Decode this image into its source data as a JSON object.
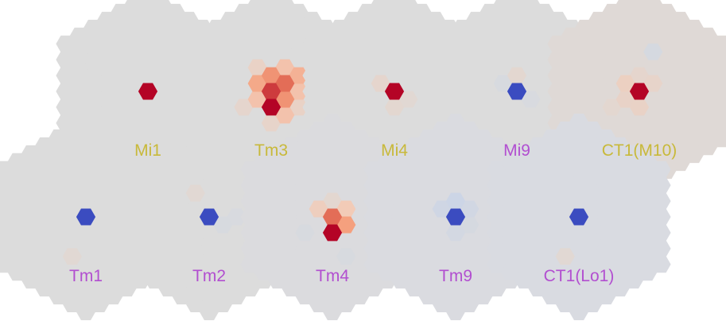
{
  "colors": {
    "on_label": "#c8b93a",
    "off_label": "#b24fd0",
    "background_hex": "#dcdcdc",
    "center_on": "#b40426",
    "center_off": "#3b4cc0"
  },
  "rows": [
    {
      "panels": [
        {
          "name": "Mi1",
          "polarity": "on",
          "tint": "#dcdcdc",
          "hexes": [
            {
              "q": 0,
              "r": 0,
              "v": 1.0
            }
          ]
        },
        {
          "name": "Tm3",
          "polarity": "on",
          "tint": "#dcdcdc",
          "hexes": [
            {
              "q": 0,
              "r": 0,
              "v": 0.85
            },
            {
              "q": 1,
              "r": 0,
              "v": 0.55
            },
            {
              "q": 0,
              "r": -1,
              "v": 0.55
            },
            {
              "q": 1,
              "r": -1,
              "v": 0.7
            },
            {
              "q": -1,
              "r": 0,
              "v": 0.45
            },
            {
              "q": -1,
              "r": 1,
              "v": 0.3
            },
            {
              "q": 0,
              "r": 1,
              "v": 1.0
            },
            {
              "q": 1,
              "r": 1,
              "v": 0.3
            },
            {
              "q": 2,
              "r": -1,
              "v": 0.3
            },
            {
              "q": 2,
              "r": -2,
              "v": 0.4
            },
            {
              "q": 1,
              "r": -2,
              "v": 0.3
            },
            {
              "q": -1,
              "r": -1,
              "v": 0.15
            },
            {
              "q": 2,
              "r": 0,
              "v": 0.15
            },
            {
              "q": 0,
              "r": 2,
              "v": 0.12
            },
            {
              "q": -2,
              "r": 2,
              "v": 0.1
            }
          ]
        },
        {
          "name": "Mi4",
          "polarity": "on",
          "tint": "#dcdcdc",
          "hexes": [
            {
              "q": 0,
              "r": 0,
              "v": 1.0
            },
            {
              "q": -1,
              "r": 0,
              "v": 0.1
            },
            {
              "q": 0,
              "r": 1,
              "v": 0.08
            },
            {
              "q": 1,
              "r": 0,
              "v": 0.06
            }
          ]
        },
        {
          "name": "Mi9",
          "polarity": "off",
          "tint": "#dcdcdc",
          "hexes": [
            {
              "q": 0,
              "r": 0,
              "v": -1.0
            },
            {
              "q": 0,
              "r": -1,
              "v": 0.08
            },
            {
              "q": -1,
              "r": 0,
              "v": -0.06
            },
            {
              "q": 1,
              "r": 0,
              "v": -0.05
            }
          ]
        },
        {
          "name": "CT1(M10)",
          "polarity": "on",
          "tint": "#dfd9d6",
          "hexes": [
            {
              "q": 0,
              "r": 0,
              "v": 1.0
            },
            {
              "q": -1,
              "r": 0,
              "v": 0.18
            },
            {
              "q": -1,
              "r": 1,
              "v": 0.14
            },
            {
              "q": 0,
              "r": 1,
              "v": 0.15
            },
            {
              "q": 1,
              "r": -1,
              "v": 0.12
            },
            {
              "q": 0,
              "r": -1,
              "v": 0.1
            },
            {
              "q": -2,
              "r": 2,
              "v": 0.08
            },
            {
              "q": 1,
              "r": -3,
              "v": -0.08
            }
          ]
        }
      ]
    },
    {
      "panels": [
        {
          "name": "Tm1",
          "polarity": "off",
          "tint": "#dcdcdc",
          "hexes": [
            {
              "q": 0,
              "r": 0,
              "v": -1.0
            },
            {
              "q": -1,
              "r": 3,
              "v": 0.06
            }
          ]
        },
        {
          "name": "Tm2",
          "polarity": "off",
          "tint": "#dcdcdc",
          "hexes": [
            {
              "q": 0,
              "r": 0,
              "v": -1.0
            },
            {
              "q": 1,
              "r": 0,
              "v": -0.06
            },
            {
              "q": 2,
              "r": -1,
              "v": -0.05
            },
            {
              "q": -1,
              "r": -1,
              "v": 0.06
            }
          ]
        },
        {
          "name": "Tm4",
          "polarity": "off",
          "tint": "#dbdbde",
          "hexes": [
            {
              "q": 0,
              "r": 0,
              "v": 0.7
            },
            {
              "q": 0,
              "r": 1,
              "v": 1.0
            },
            {
              "q": 1,
              "r": 0,
              "v": 0.5
            },
            {
              "q": -1,
              "r": 0,
              "v": 0.2
            },
            {
              "q": 1,
              "r": -1,
              "v": 0.25
            },
            {
              "q": 0,
              "r": -1,
              "v": 0.08
            },
            {
              "q": -2,
              "r": 2,
              "v": -0.06
            },
            {
              "q": 1,
              "r": 2,
              "v": -0.06
            }
          ]
        },
        {
          "name": "Tm9",
          "polarity": "off",
          "tint": "#dadbe0",
          "hexes": [
            {
              "q": 0,
              "r": 0,
              "v": -1.0
            },
            {
              "q": 0,
              "r": -1,
              "v": -0.18
            },
            {
              "q": -1,
              "r": 0,
              "v": -0.15
            },
            {
              "q": 1,
              "r": -1,
              "v": -0.12
            },
            {
              "q": 0,
              "r": 1,
              "v": -0.1
            },
            {
              "q": 1,
              "r": 0,
              "v": -0.08
            }
          ]
        },
        {
          "name": "CT1(Lo1)",
          "polarity": "off",
          "tint": "#d9dbe1",
          "hexes": [
            {
              "q": 0,
              "r": 0,
              "v": -1.0
            },
            {
              "q": -1,
              "r": 3,
              "v": 0.06
            }
          ]
        }
      ]
    }
  ]
}
